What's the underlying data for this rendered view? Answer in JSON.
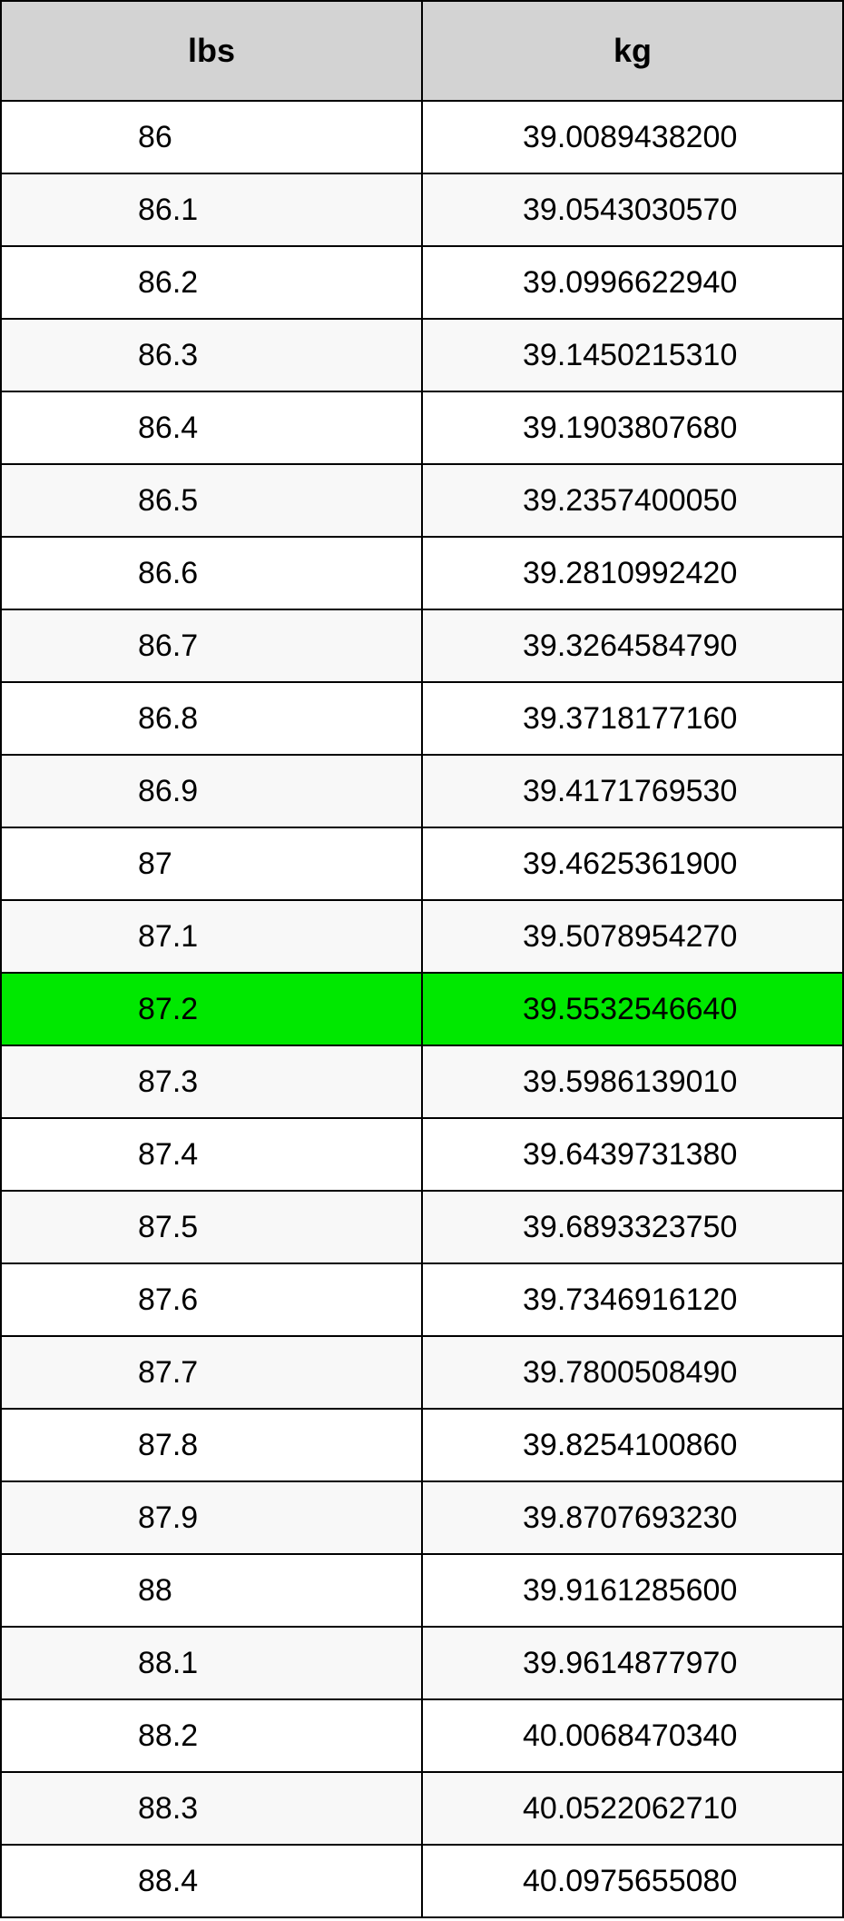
{
  "table": {
    "type": "table",
    "columns": [
      "lbs",
      "kg"
    ],
    "header_bg": "#d3d3d3",
    "border_color": "#000000",
    "row_bg_even": "#ffffff",
    "row_bg_odd": "#f8f8f8",
    "highlight_bg": "#00e800",
    "header_fontsize": 36,
    "cell_fontsize": 34,
    "highlighted_row_index": 12,
    "rows": [
      [
        "86",
        "39.0089438200"
      ],
      [
        "86.1",
        "39.0543030570"
      ],
      [
        "86.2",
        "39.0996622940"
      ],
      [
        "86.3",
        "39.1450215310"
      ],
      [
        "86.4",
        "39.1903807680"
      ],
      [
        "86.5",
        "39.2357400050"
      ],
      [
        "86.6",
        "39.2810992420"
      ],
      [
        "86.7",
        "39.3264584790"
      ],
      [
        "86.8",
        "39.3718177160"
      ],
      [
        "86.9",
        "39.4171769530"
      ],
      [
        "87",
        "39.4625361900"
      ],
      [
        "87.1",
        "39.5078954270"
      ],
      [
        "87.2",
        "39.5532546640"
      ],
      [
        "87.3",
        "39.5986139010"
      ],
      [
        "87.4",
        "39.6439731380"
      ],
      [
        "87.5",
        "39.6893323750"
      ],
      [
        "87.6",
        "39.7346916120"
      ],
      [
        "87.7",
        "39.7800508490"
      ],
      [
        "87.8",
        "39.8254100860"
      ],
      [
        "87.9",
        "39.8707693230"
      ],
      [
        "88",
        "39.9161285600"
      ],
      [
        "88.1",
        "39.9614877970"
      ],
      [
        "88.2",
        "40.0068470340"
      ],
      [
        "88.3",
        "40.0522062710"
      ],
      [
        "88.4",
        "40.0975655080"
      ]
    ]
  }
}
